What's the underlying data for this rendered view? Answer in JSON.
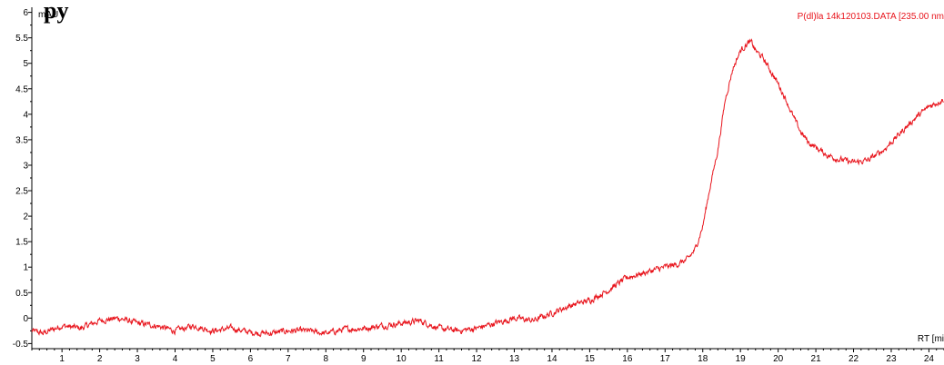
{
  "heading_fragment": "py",
  "chart_data": {
    "type": "line",
    "title": "",
    "ylabel": "mAU",
    "xlabel": "RT [mi",
    "trace_label": "P(dl)la 14k120103.DATA [235.00 nm",
    "line_color": "#e8141c",
    "xlim": [
      0.2,
      24.4
    ],
    "ylim": [
      -0.6,
      6.1
    ],
    "grid": false,
    "x_ticks": [
      1,
      2,
      3,
      4,
      5,
      6,
      7,
      8,
      9,
      10,
      11,
      12,
      13,
      14,
      15,
      16,
      17,
      18,
      19,
      20,
      21,
      22,
      23,
      24
    ],
    "x_tick_labels": [
      "1",
      "2",
      "3",
      "4",
      "5",
      "6",
      "7",
      "8",
      "9",
      "10",
      "11",
      "12",
      "13",
      "14",
      "15",
      "16",
      "17",
      "18",
      "19",
      "20",
      "21",
      "22",
      "23",
      "24"
    ],
    "y_ticks": [
      -0.5,
      0,
      0.5,
      1,
      1.5,
      2,
      2.5,
      3,
      3.5,
      4,
      4.5,
      5,
      5.5,
      6
    ],
    "y_tick_labels": [
      "-0.5",
      "0",
      "0.5",
      "1",
      "1.5",
      "2",
      "2.5",
      "3",
      "3.5",
      "4",
      "4.5",
      "5",
      "5.5",
      "6"
    ],
    "series": [
      {
        "x": [
          0.2,
          0.5,
          1,
          1.5,
          2,
          2.5,
          3,
          3.5,
          4,
          4.5,
          5,
          5.5,
          6,
          6.5,
          7,
          7.5,
          8,
          8.5,
          9,
          9.5,
          10,
          10.5,
          11,
          11.5,
          12,
          12.5,
          13,
          13.5,
          14,
          14.5,
          15,
          15.5,
          16,
          16.5,
          17,
          17.3,
          17.6,
          17.8,
          18.0,
          18.2,
          18.4,
          18.6,
          18.8,
          19.0,
          19.2,
          19.3,
          19.4,
          19.6,
          19.8,
          20.0,
          20.2,
          20.4,
          20.6,
          20.8,
          21.0,
          21.3,
          21.6,
          22.0,
          22.4,
          22.8,
          23.2,
          23.6,
          24.0,
          24.4
        ],
        "y": [
          -0.25,
          -0.3,
          -0.15,
          -0.2,
          -0.05,
          0.0,
          -0.1,
          -0.15,
          -0.25,
          -0.15,
          -0.25,
          -0.2,
          -0.28,
          -0.3,
          -0.25,
          -0.25,
          -0.3,
          -0.22,
          -0.2,
          -0.15,
          -0.1,
          -0.05,
          -0.2,
          -0.25,
          -0.2,
          -0.1,
          0.0,
          -0.05,
          0.1,
          0.25,
          0.35,
          0.55,
          0.8,
          0.9,
          1.0,
          1.05,
          1.15,
          1.35,
          1.8,
          2.6,
          3.3,
          4.3,
          4.9,
          5.25,
          5.4,
          5.4,
          5.25,
          5.1,
          4.85,
          4.6,
          4.3,
          3.95,
          3.65,
          3.45,
          3.35,
          3.2,
          3.12,
          3.05,
          3.1,
          3.3,
          3.6,
          3.9,
          4.15,
          4.3
        ]
      }
    ]
  }
}
